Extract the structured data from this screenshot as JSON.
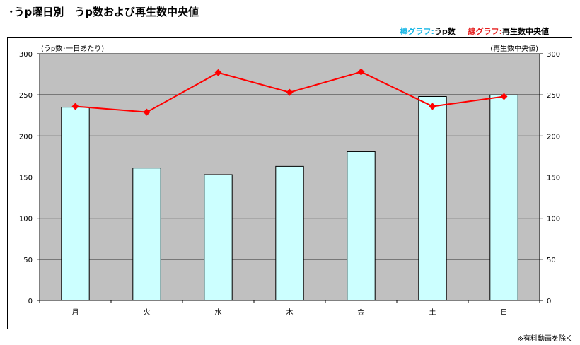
{
  "page": {
    "title": "･うp曜日別　うp数および再生数中央値",
    "footnote": "※有料動画を除く"
  },
  "legend": {
    "bar_key": "棒グラフ:",
    "bar_value": "うp数",
    "line_key": "線グラフ:",
    "line_value": "再生数中央値"
  },
  "colors": {
    "plot_background": "#c0c0c0",
    "bar_fill": "#ccffff",
    "line": "#ff0000",
    "bar_legend": "#19b7e6",
    "line_legend": "#e62020"
  },
  "chart_data": {
    "type": "bar",
    "categories": [
      "月",
      "火",
      "水",
      "木",
      "金",
      "土",
      "日"
    ],
    "series": [
      {
        "name": "うp数",
        "type": "bar",
        "axis": "left",
        "values": [
          235,
          161,
          153,
          163,
          181,
          248,
          250
        ]
      },
      {
        "name": "再生数中央値",
        "type": "line",
        "axis": "right",
        "values": [
          236,
          229,
          277,
          253,
          278,
          236,
          248
        ]
      }
    ],
    "ylabel_left": "(うp数･一日あたり)",
    "ylabel_right": "(再生数中央値)",
    "ylim": [
      0,
      300
    ],
    "yticks": [
      0,
      50,
      100,
      150,
      200,
      250,
      300
    ],
    "grid": true,
    "legend_position": "top-right"
  }
}
